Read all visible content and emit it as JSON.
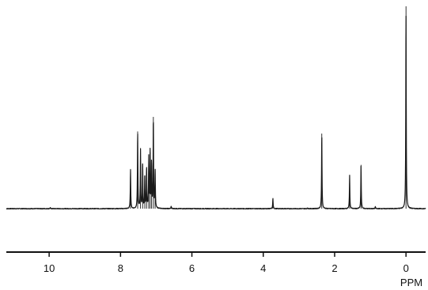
{
  "chart_data": {
    "type": "line",
    "title": "",
    "xlabel": "PPM",
    "ylabel": "",
    "x_reversed": true,
    "xlim": [
      11.2,
      -0.55
    ],
    "ylim": [
      0,
      100
    ],
    "grid": false,
    "legend": "none",
    "baseline": 3,
    "x_ticks": [
      {
        "value": 10,
        "label": "10"
      },
      {
        "value": 8,
        "label": "8"
      },
      {
        "value": 6,
        "label": "6"
      },
      {
        "value": 4,
        "label": "4"
      },
      {
        "value": 2,
        "label": "2"
      },
      {
        "value": 0,
        "label": "0"
      }
    ],
    "series": [
      {
        "color": "#1a1a1a",
        "peaks": [
          {
            "ppm": 9.97,
            "height": 0.5
          },
          {
            "ppm": 7.72,
            "height": 19
          },
          {
            "ppm": 7.52,
            "height": 37
          },
          {
            "ppm": 7.44,
            "height": 28
          },
          {
            "ppm": 7.38,
            "height": 21
          },
          {
            "ppm": 7.32,
            "height": 16
          },
          {
            "ppm": 7.27,
            "height": 19
          },
          {
            "ppm": 7.21,
            "height": 24
          },
          {
            "ppm": 7.17,
            "height": 27
          },
          {
            "ppm": 7.13,
            "height": 22
          },
          {
            "ppm": 7.08,
            "height": 44
          },
          {
            "ppm": 7.03,
            "height": 18
          },
          {
            "ppm": 6.58,
            "height": 1.2
          },
          {
            "ppm": 3.73,
            "height": 5
          },
          {
            "ppm": 2.76,
            "height": 0.4
          },
          {
            "ppm": 2.36,
            "height": 36
          },
          {
            "ppm": 1.58,
            "height": 16
          },
          {
            "ppm": 1.26,
            "height": 21
          },
          {
            "ppm": 0.86,
            "height": 1
          },
          {
            "ppm": 0.0,
            "height": 97
          }
        ]
      }
    ]
  }
}
